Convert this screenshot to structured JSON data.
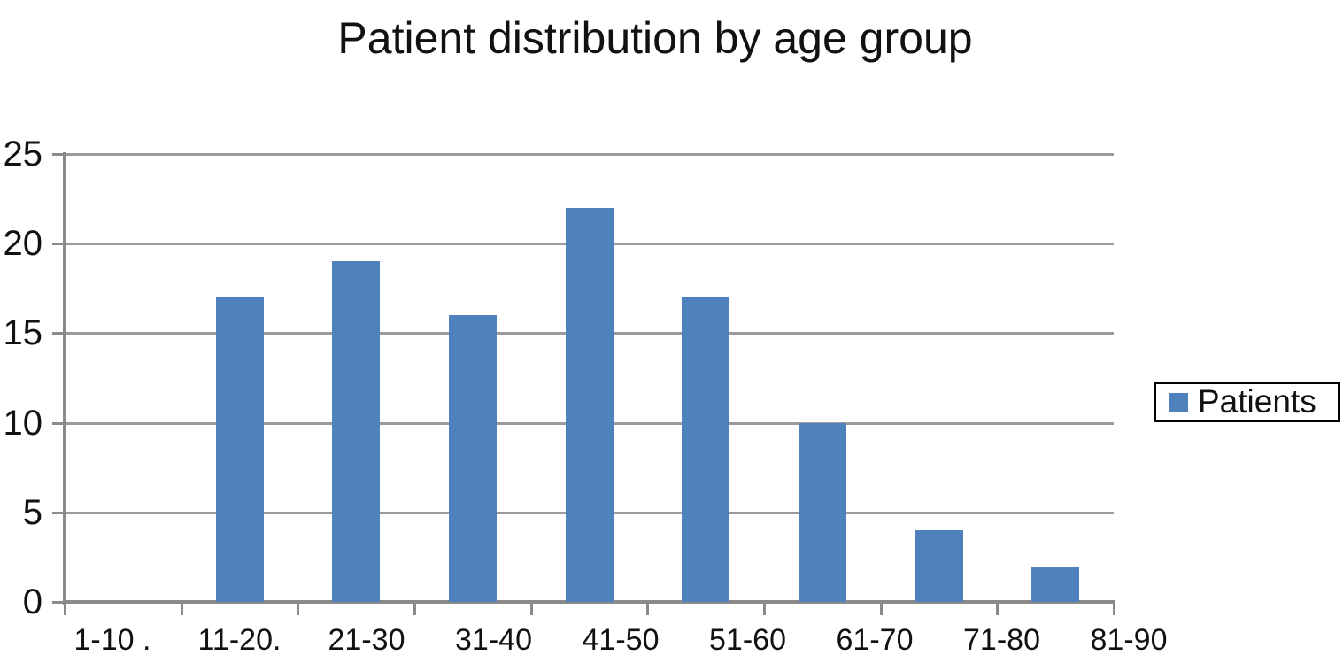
{
  "title": "Patient distribution by age group",
  "legend": {
    "label": "Patients"
  },
  "colors": {
    "bar": "#4f81bd",
    "gridline": "#9b9b9b",
    "axis": "#8a8a8a",
    "text": "#111111",
    "legend_border": "#000000",
    "background": "#ffffff"
  },
  "chart_data": {
    "type": "bar",
    "title": "Patient distribution by age group",
    "categories": [
      "1-10 .",
      "11-20.",
      "21-30",
      "31-40",
      "41-50",
      "51-60",
      "61-70",
      "71-80",
      "81-90"
    ],
    "series": [
      {
        "name": "Patients",
        "values": [
          0,
          17,
          19,
          16,
          22,
          17,
          10,
          4,
          2
        ]
      }
    ],
    "xlabel": "",
    "ylabel": "",
    "ylim": [
      0,
      25
    ],
    "yticks": [
      0,
      5,
      10,
      15,
      20,
      25
    ],
    "grid": true,
    "legend_position": "right",
    "bar_color": "#4f81bd"
  }
}
